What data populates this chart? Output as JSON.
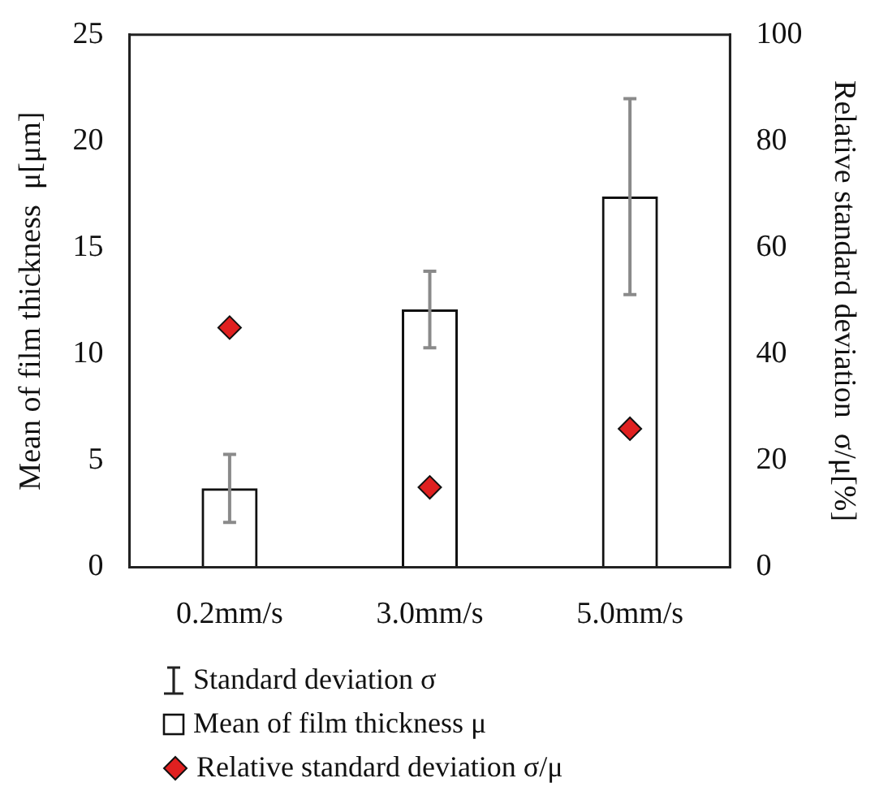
{
  "chart_data": {
    "type": "bar",
    "xlabel": null,
    "ylabel": "Mean of film thickness  μ[μm]",
    "y2label": "Relative standard deviation  σ/μ[%]",
    "categories": [
      "0.2mm/s",
      "3.0mm/s",
      "5.0mm/s"
    ],
    "series": [
      {
        "name": "Mean of film thickness  μ",
        "color": "#111111",
        "values": [
          3.7,
          12.1,
          17.4
        ],
        "errors": [
          1.6,
          1.8,
          4.6
        ]
      },
      {
        "name": "Relative standard deviation  σ/μ",
        "type": "scatter",
        "axis": "y2",
        "color": "#e02020",
        "marker": "diamond",
        "values": [
          45,
          15,
          26
        ]
      }
    ],
    "ylim": [
      0,
      25
    ],
    "yticks": [
      0,
      5,
      10,
      15,
      20,
      25
    ],
    "y2lim": [
      0,
      100
    ],
    "y2ticks": [
      0,
      20,
      40,
      60,
      80,
      100
    ],
    "grid": false,
    "legend": "bottom",
    "annotations": [
      "Standard deviation σ"
    ]
  }
}
